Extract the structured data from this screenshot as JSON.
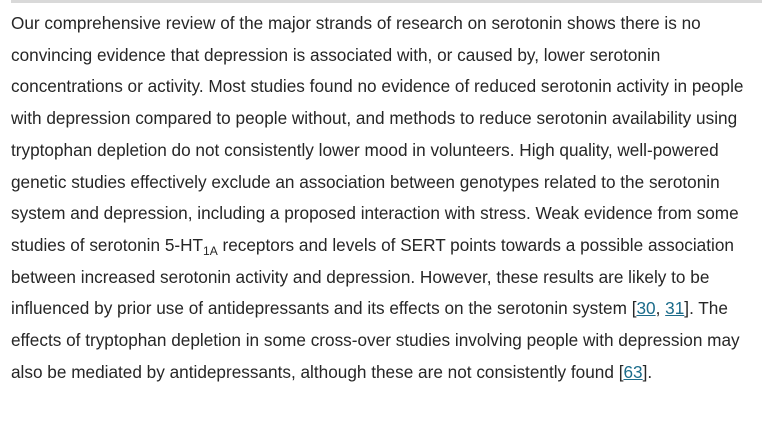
{
  "paragraph": {
    "part1": "Our comprehensive review of the major strands of research on serotonin shows there is no convincing evidence that depression is associated with, or caused by, lower serotonin concentrations or activity. Most studies found no evidence of reduced serotonin activity in people with depression compared to people without, and methods to reduce serotonin availability using tryptophan depletion do not consistently lower mood in volunteers. High quality, well-powered genetic studies effectively exclude an association between genotypes related to the serotonin system and depression, including a proposed interaction with stress. Weak evidence from some studies of serotonin 5-HT",
    "subscript": "1A",
    "part2": " receptors and levels of SERT points towards a possible association between increased serotonin activity and depression. However, these results are likely to be influenced by prior use of antidepressants and its effects on the serotonin system [",
    "ref1": "30",
    "sep": ", ",
    "ref2": "31",
    "part3": "]. The effects of tryptophan depletion in some cross-over studies involving people with depression may also be mediated by antidepressants, although these are not consistently found [",
    "ref3": "63",
    "part4": "]."
  }
}
